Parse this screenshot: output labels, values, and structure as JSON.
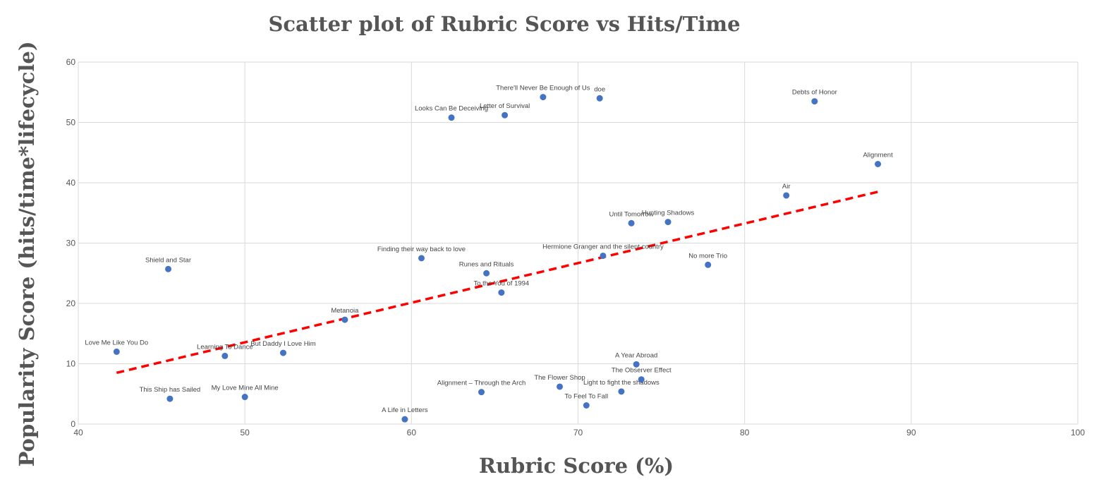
{
  "chart_data": {
    "type": "scatter",
    "title": "Scatter plot of Rubric Score vs Hits/Time",
    "xlabel": "Rubric Score (%)",
    "ylabel": "Popularity Score (hits/time*lifecycle)",
    "xlim": [
      40,
      100
    ],
    "ylim": [
      0,
      60
    ],
    "xticks": [
      "40",
      "50",
      "60",
      "70",
      "80",
      "90",
      "100"
    ],
    "yticks": [
      "0",
      "10",
      "20",
      "30",
      "40",
      "50",
      "60"
    ],
    "grid": true,
    "point_color": "#4472c4",
    "trendline": {
      "color": "#ff0000",
      "style": "dashed",
      "x": [
        42.3,
        88
      ],
      "y": [
        8.5,
        38.5
      ]
    },
    "points": [
      {
        "label": "Love Me Like You Do",
        "x": 42.3,
        "y": 12.0
      },
      {
        "label": "This Ship has Sailed",
        "x": 45.5,
        "y": 4.2
      },
      {
        "label": "Shield and Star",
        "x": 45.4,
        "y": 25.7
      },
      {
        "label": "Learning To Dance",
        "x": 48.8,
        "y": 11.3
      },
      {
        "label": "My Love Mine All Mine",
        "x": 50.0,
        "y": 4.5
      },
      {
        "label": "But Daddy I Love Him",
        "x": 52.3,
        "y": 11.8
      },
      {
        "label": "Metanoia",
        "x": 56.0,
        "y": 17.3
      },
      {
        "label": "A Life in Letters",
        "x": 59.6,
        "y": 0.8
      },
      {
        "label": "Finding their way back to love",
        "x": 60.6,
        "y": 27.5
      },
      {
        "label": "Looks Can Be Deceiving",
        "x": 62.4,
        "y": 50.8
      },
      {
        "label": "Alignment – Through the Arch",
        "x": 64.2,
        "y": 5.3
      },
      {
        "label": "Runes and Rituals",
        "x": 64.5,
        "y": 25.0
      },
      {
        "label": "To the You of 1994",
        "x": 65.4,
        "y": 21.8
      },
      {
        "label": "Letter of Survival",
        "x": 65.6,
        "y": 51.2
      },
      {
        "label": "There'll Never Be Enough of Us",
        "x": 67.9,
        "y": 54.2
      },
      {
        "label": "The Flower Shop",
        "x": 68.9,
        "y": 6.2
      },
      {
        "label": "To Feel To Fall",
        "x": 70.5,
        "y": 3.1
      },
      {
        "label": "doe",
        "x": 71.3,
        "y": 54.0
      },
      {
        "label": "Hermione Granger and the silent country",
        "x": 71.5,
        "y": 27.9
      },
      {
        "label": "Light to fight the shadows",
        "x": 72.6,
        "y": 5.4
      },
      {
        "label": "Until Tomorrow",
        "x": 73.2,
        "y": 33.3
      },
      {
        "label": "A Year Abroad",
        "x": 73.5,
        "y": 9.9
      },
      {
        "label": "The Observer Effect",
        "x": 73.8,
        "y": 7.4
      },
      {
        "label": "Hunting Shadows",
        "x": 75.4,
        "y": 33.5
      },
      {
        "label": "No more Trio",
        "x": 77.8,
        "y": 26.4
      },
      {
        "label": "Air",
        "x": 82.5,
        "y": 37.9
      },
      {
        "label": "Debts of Honor",
        "x": 84.2,
        "y": 53.5
      },
      {
        "label": "Alignment",
        "x": 88.0,
        "y": 43.1
      }
    ]
  }
}
